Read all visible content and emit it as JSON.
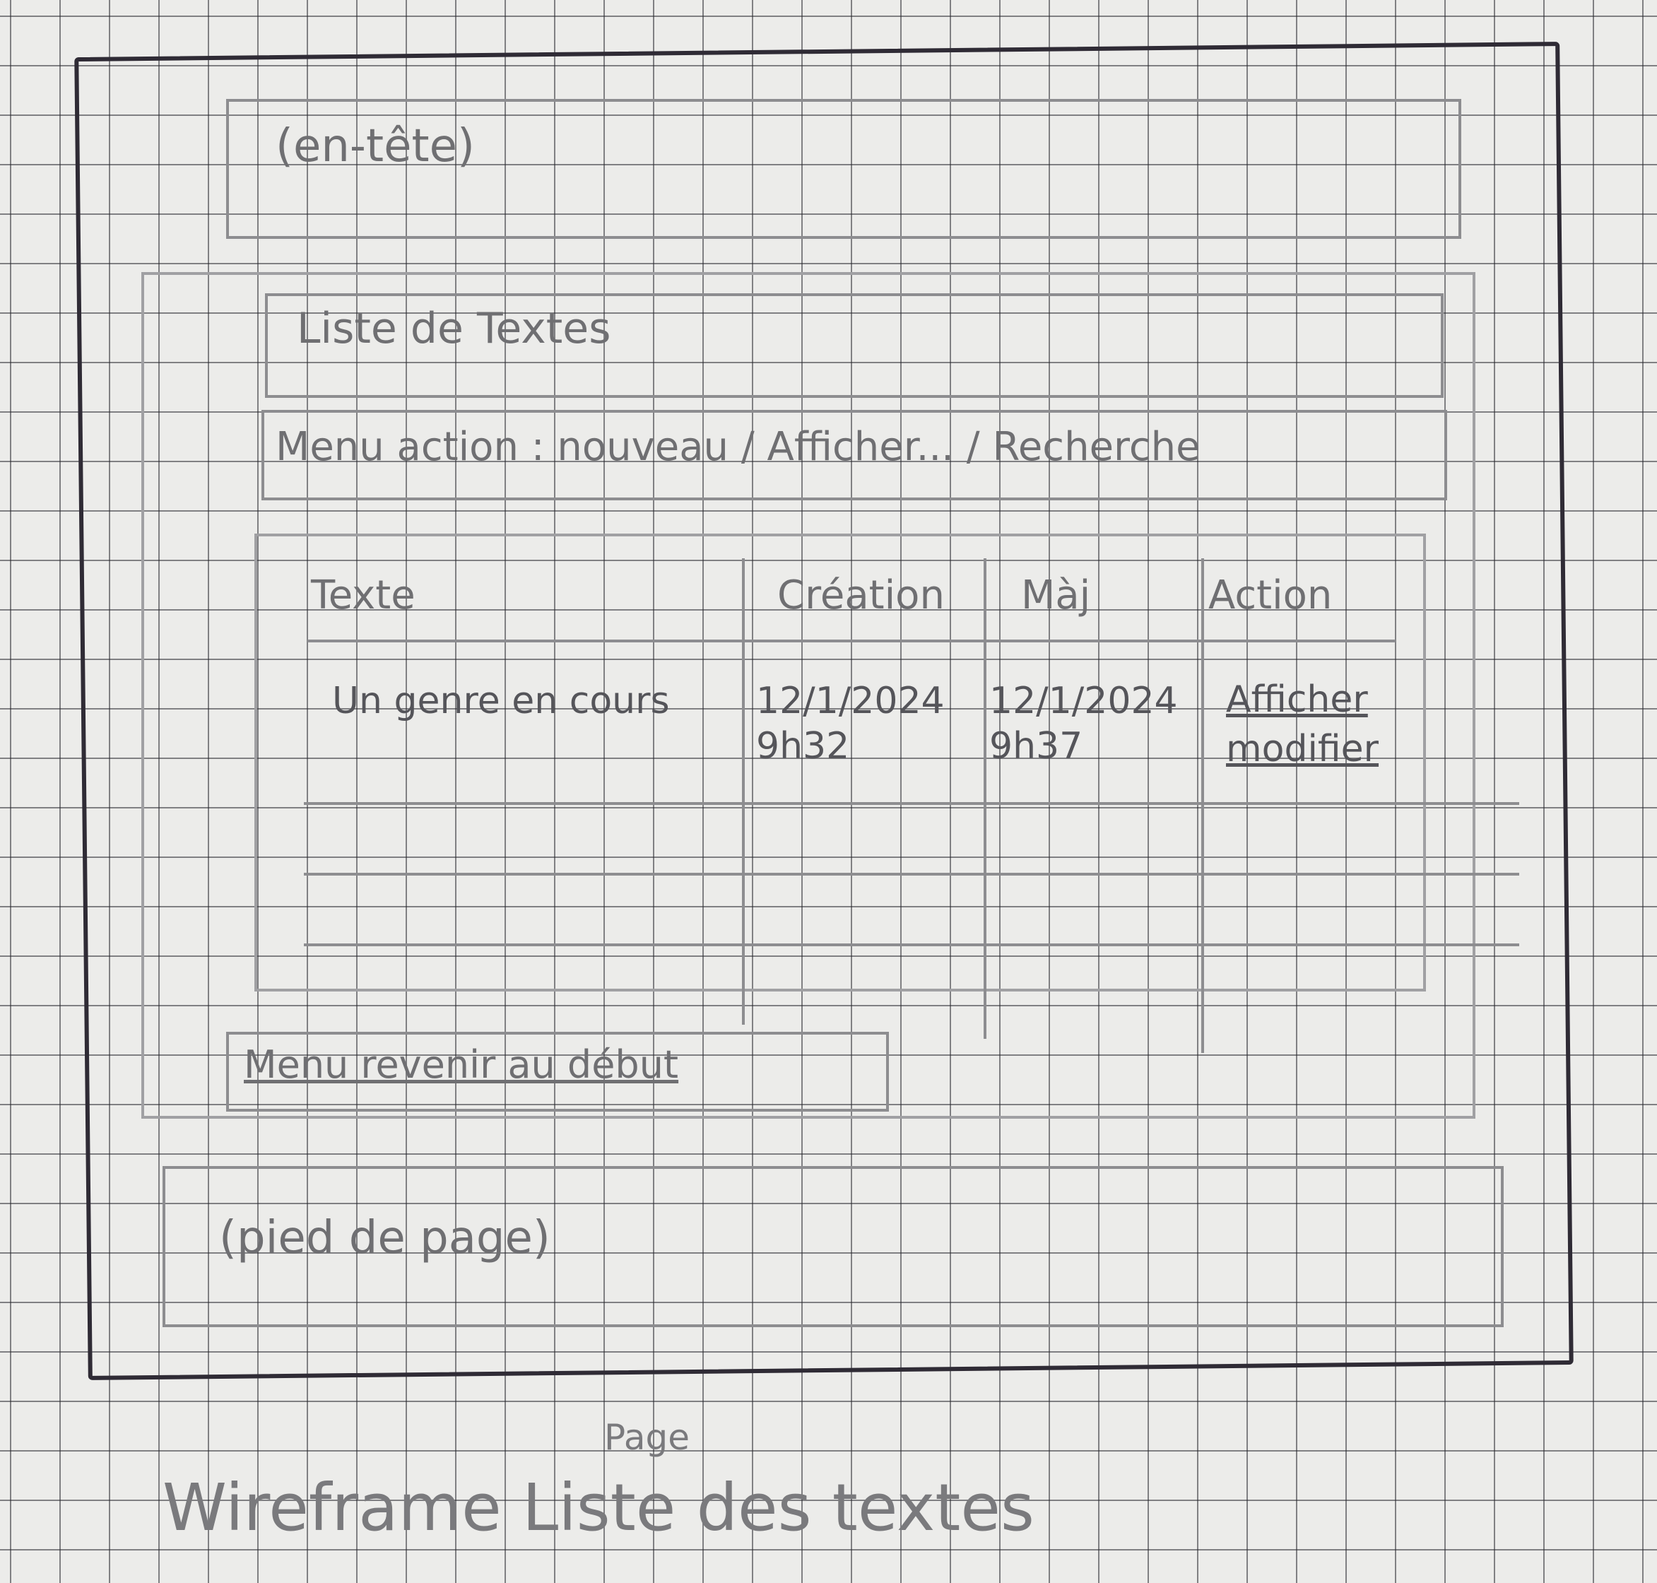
{
  "wireframe": {
    "header": {
      "label": "(en-tête)"
    },
    "page_title": "Liste de Textes",
    "action_bar": {
      "label": "Menu action : nouveau / Afficher... / Recherche"
    },
    "table": {
      "columns": [
        "Texte",
        "Création",
        "Màj",
        "Action"
      ],
      "rows": [
        {
          "text": "Un genre en cours",
          "created": "12/1/2024 9h32",
          "updated": "12/1/2024 9h37",
          "actions": [
            "Afficher",
            "modifier"
          ]
        }
      ]
    },
    "back_link": "Menu revenir au début",
    "footer": {
      "label": "(pied de page)"
    }
  },
  "caption": {
    "main": "Wireframe Liste des textes",
    "extra": "Page"
  }
}
